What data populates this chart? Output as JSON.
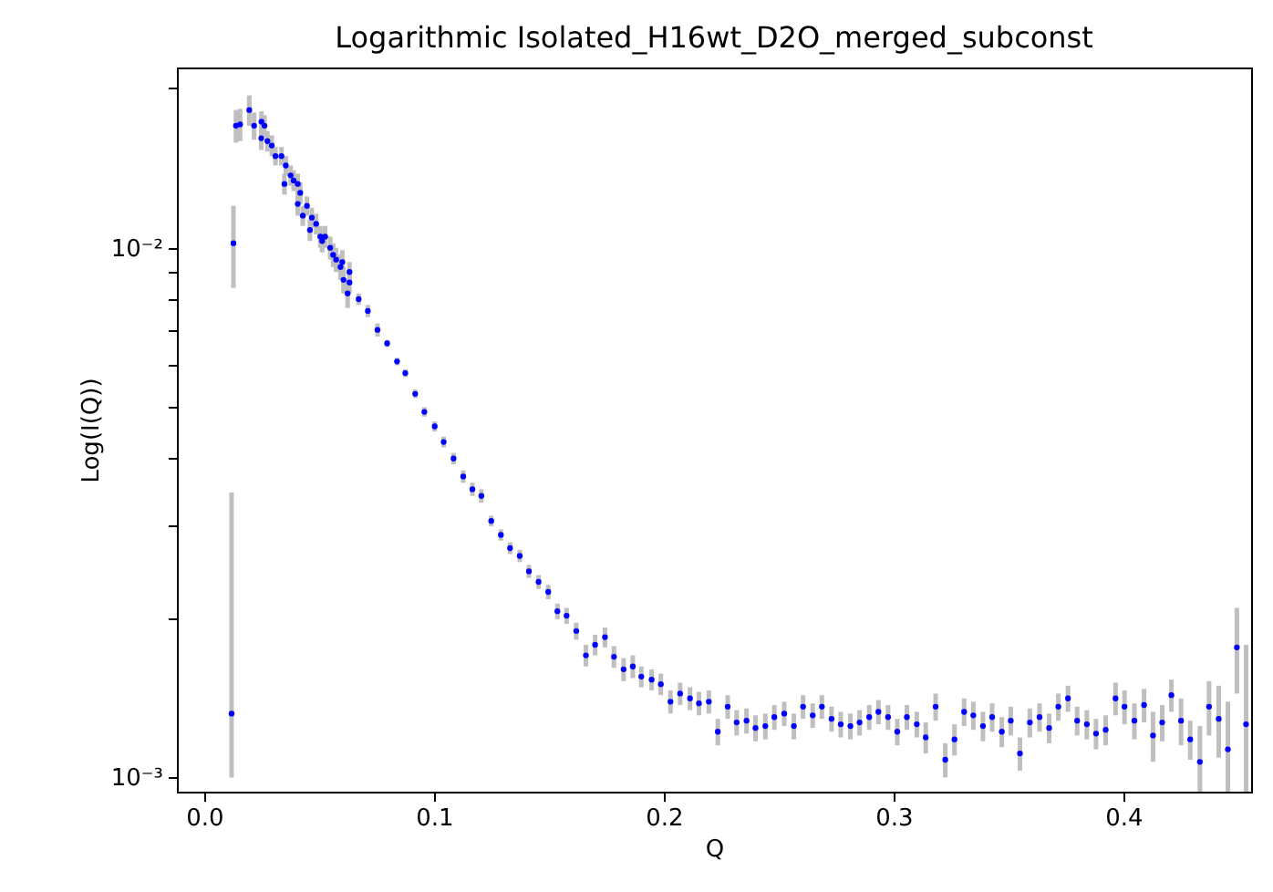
{
  "chart_data": {
    "type": "scatter",
    "title": "Logarithmic Isolated_H16wt_D2O_merged_subconst",
    "xlabel": "Q",
    "ylabel": "Log(I(Q))",
    "color": "#0000ff",
    "marker": "circle",
    "log": "y",
    "xlim": [
      -0.0119,
      0.4556
    ],
    "ylim": [
      0.00094,
      0.0219
    ],
    "xticks": [
      {
        "value": 0,
        "label": "0.0"
      },
      {
        "value": 0.1,
        "label": "0.1"
      },
      {
        "value": 0.2,
        "label": "0.2"
      },
      {
        "value": 0.3,
        "label": "0.3"
      },
      {
        "value": 0.4,
        "label": "0.4"
      }
    ],
    "yticks": [
      {
        "value": 0.001,
        "label": "10⁻³"
      },
      {
        "value": 0.002,
        "label": null
      },
      {
        "value": 0.003,
        "label": null
      },
      {
        "value": 0.004,
        "label": null
      },
      {
        "value": 0.005,
        "label": null
      },
      {
        "value": 0.006,
        "label": null
      },
      {
        "value": 0.007,
        "label": null
      },
      {
        "value": 0.008,
        "label": null
      },
      {
        "value": 0.009,
        "label": null
      },
      {
        "value": 0.01,
        "label": "10⁻²"
      },
      {
        "value": 0.02,
        "label": null
      }
    ],
    "x": [
      0.0119,
      0.0127,
      0.0138,
      0.0156,
      0.0196,
      0.0217,
      0.0248,
      0.0249,
      0.0262,
      0.0275,
      0.0294,
      0.031,
      0.0336,
      0.0349,
      0.0355,
      0.0376,
      0.0389,
      0.0407,
      0.0407,
      0.0418,
      0.0429,
      0.0447,
      0.046,
      0.0468,
      0.0487,
      0.0505,
      0.0513,
      0.0526,
      0.0548,
      0.0561,
      0.0574,
      0.0593,
      0.0601,
      0.0606,
      0.0624,
      0.0632,
      0.0632,
      0.0672,
      0.0712,
      0.0754,
      0.0796,
      0.0839,
      0.0875,
      0.0918,
      0.0958,
      0.1003,
      0.1042,
      0.1085,
      0.1127,
      0.1167,
      0.1206,
      0.1249,
      0.1291,
      0.1331,
      0.1373,
      0.1413,
      0.1455,
      0.1497,
      0.1537,
      0.1577,
      0.1619,
      0.1661,
      0.1701,
      0.1744,
      0.1783,
      0.1825,
      0.1865,
      0.1902,
      0.1947,
      0.1987,
      0.2029,
      0.2071,
      0.2114,
      0.2153,
      0.2196,
      0.2235,
      0.2278,
      0.2317,
      0.236,
      0.2399,
      0.2442,
      0.2481,
      0.2524,
      0.2566,
      0.2606,
      0.2648,
      0.2688,
      0.273,
      0.277,
      0.2812,
      0.2852,
      0.2894,
      0.2934,
      0.2976,
      0.3016,
      0.3058,
      0.3101,
      0.314,
      0.3183,
      0.3225,
      0.3265,
      0.3307,
      0.3347,
      0.3389,
      0.3429,
      0.3471,
      0.351,
      0.355,
      0.3593,
      0.3635,
      0.3677,
      0.3717,
      0.3759,
      0.3799,
      0.3841,
      0.3881,
      0.3923,
      0.3966,
      0.4005,
      0.4048,
      0.409,
      0.4129,
      0.4169,
      0.4209,
      0.4251,
      0.4291,
      0.4333,
      0.4373,
      0.4415,
      0.4455,
      0.4494,
      0.4534
    ],
    "values": [
      0.00132,
      0.0102,
      0.017,
      0.0171,
      0.0182,
      0.017,
      0.0161,
      0.0173,
      0.017,
      0.0159,
      0.0156,
      0.0149,
      0.0149,
      0.0132,
      0.0143,
      0.0137,
      0.0134,
      0.0132,
      0.0121,
      0.0127,
      0.0115,
      0.012,
      0.0108,
      0.0114,
      0.0111,
      0.0105,
      0.0103,
      0.0105,
      0.01,
      0.0097,
      0.0095,
      0.0092,
      0.0094,
      0.0087,
      0.0082,
      0.009,
      0.0086,
      0.008,
      0.0076,
      0.007,
      0.0066,
      0.0061,
      0.0058,
      0.0053,
      0.0049,
      0.0046,
      0.0043,
      0.004,
      0.0037,
      0.0035,
      0.0034,
      0.00305,
      0.00287,
      0.00271,
      0.00262,
      0.00245,
      0.00234,
      0.00224,
      0.00206,
      0.00202,
      0.00189,
      0.0017,
      0.00178,
      0.00184,
      0.00169,
      0.0016,
      0.00162,
      0.00155,
      0.00153,
      0.0015,
      0.00139,
      0.00144,
      0.00141,
      0.00138,
      0.00139,
      0.00122,
      0.00136,
      0.00127,
      0.00128,
      0.00124,
      0.00125,
      0.0013,
      0.00132,
      0.00125,
      0.00136,
      0.00131,
      0.00136,
      0.00129,
      0.00126,
      0.00125,
      0.00127,
      0.0013,
      0.00133,
      0.0013,
      0.00122,
      0.0013,
      0.00126,
      0.00119,
      0.00136,
      0.00108,
      0.00118,
      0.00133,
      0.00131,
      0.00125,
      0.0013,
      0.00122,
      0.00128,
      0.00111,
      0.00127,
      0.0013,
      0.00124,
      0.00136,
      0.00141,
      0.00128,
      0.00126,
      0.00121,
      0.00123,
      0.00141,
      0.00136,
      0.00128,
      0.00137,
      0.0012,
      0.00127,
      0.00143,
      0.00128,
      0.00118,
      0.00107,
      0.00136,
      0.00129,
      0.00113,
      0.00176,
      0.00126
    ],
    "errors": [
      [
        0.001,
        0.00345
      ],
      0.0018,
      0.0012,
      0.0012,
      0.0012,
      0.001,
      0.0008,
      0.0008,
      0.0008,
      0.0007,
      0.0007,
      0.0006,
      0.0006,
      0.0006,
      0.0006,
      0.0006,
      0.0006,
      0.0006,
      0.0006,
      0.0006,
      0.0005,
      0.0005,
      0.0005,
      0.0005,
      0.0005,
      0.0005,
      0.0005,
      0.0005,
      0.0005,
      0.0005,
      0.0005,
      0.0005,
      0.0005,
      0.0005,
      0.0005,
      0.0004,
      0.0004,
      0.0002,
      0.0002,
      0.0002,
      0.0001,
      0.0001,
      0.0001,
      0.0001,
      0.0001,
      0.0001,
      0.0001,
      0.0001,
      0.0001,
      0.0001,
      0.0001,
      7e-05,
      7e-05,
      7e-05,
      7e-05,
      7e-05,
      7e-05,
      7e-05,
      7e-05,
      7e-05,
      7e-05,
      8e-05,
      8e-05,
      8e-05,
      8e-05,
      8e-05,
      8e-05,
      7e-05,
      7e-05,
      7e-05,
      7e-05,
      7e-05,
      7e-05,
      7e-05,
      7e-05,
      7e-05,
      7e-05,
      7e-05,
      7e-05,
      7e-05,
      7e-05,
      7e-05,
      7e-05,
      7e-05,
      7e-05,
      7e-05,
      7e-05,
      7e-05,
      7e-05,
      7e-05,
      7e-05,
      7e-05,
      7e-05,
      7e-05,
      7e-05,
      7e-05,
      7e-05,
      8e-05,
      8e-05,
      8e-05,
      8e-05,
      8e-05,
      8e-05,
      8e-05,
      8e-05,
      8e-05,
      8e-05,
      8e-05,
      8e-05,
      8e-05,
      8e-05,
      8e-05,
      8e-05,
      8e-05,
      8e-05,
      8e-05,
      8e-05,
      0.0001,
      0.0001,
      0.0001,
      0.0001,
      0.00013,
      0.0001,
      0.0001,
      0.00013,
      0.0001,
      [
        0.00094,
        0.00125
      ],
      0.00016,
      0.0002,
      [
        0.00094,
        0.00139
      ],
      [
        0.00144,
        0.00209
      ],
      [
        0.00094,
        0.00178
      ]
    ]
  }
}
